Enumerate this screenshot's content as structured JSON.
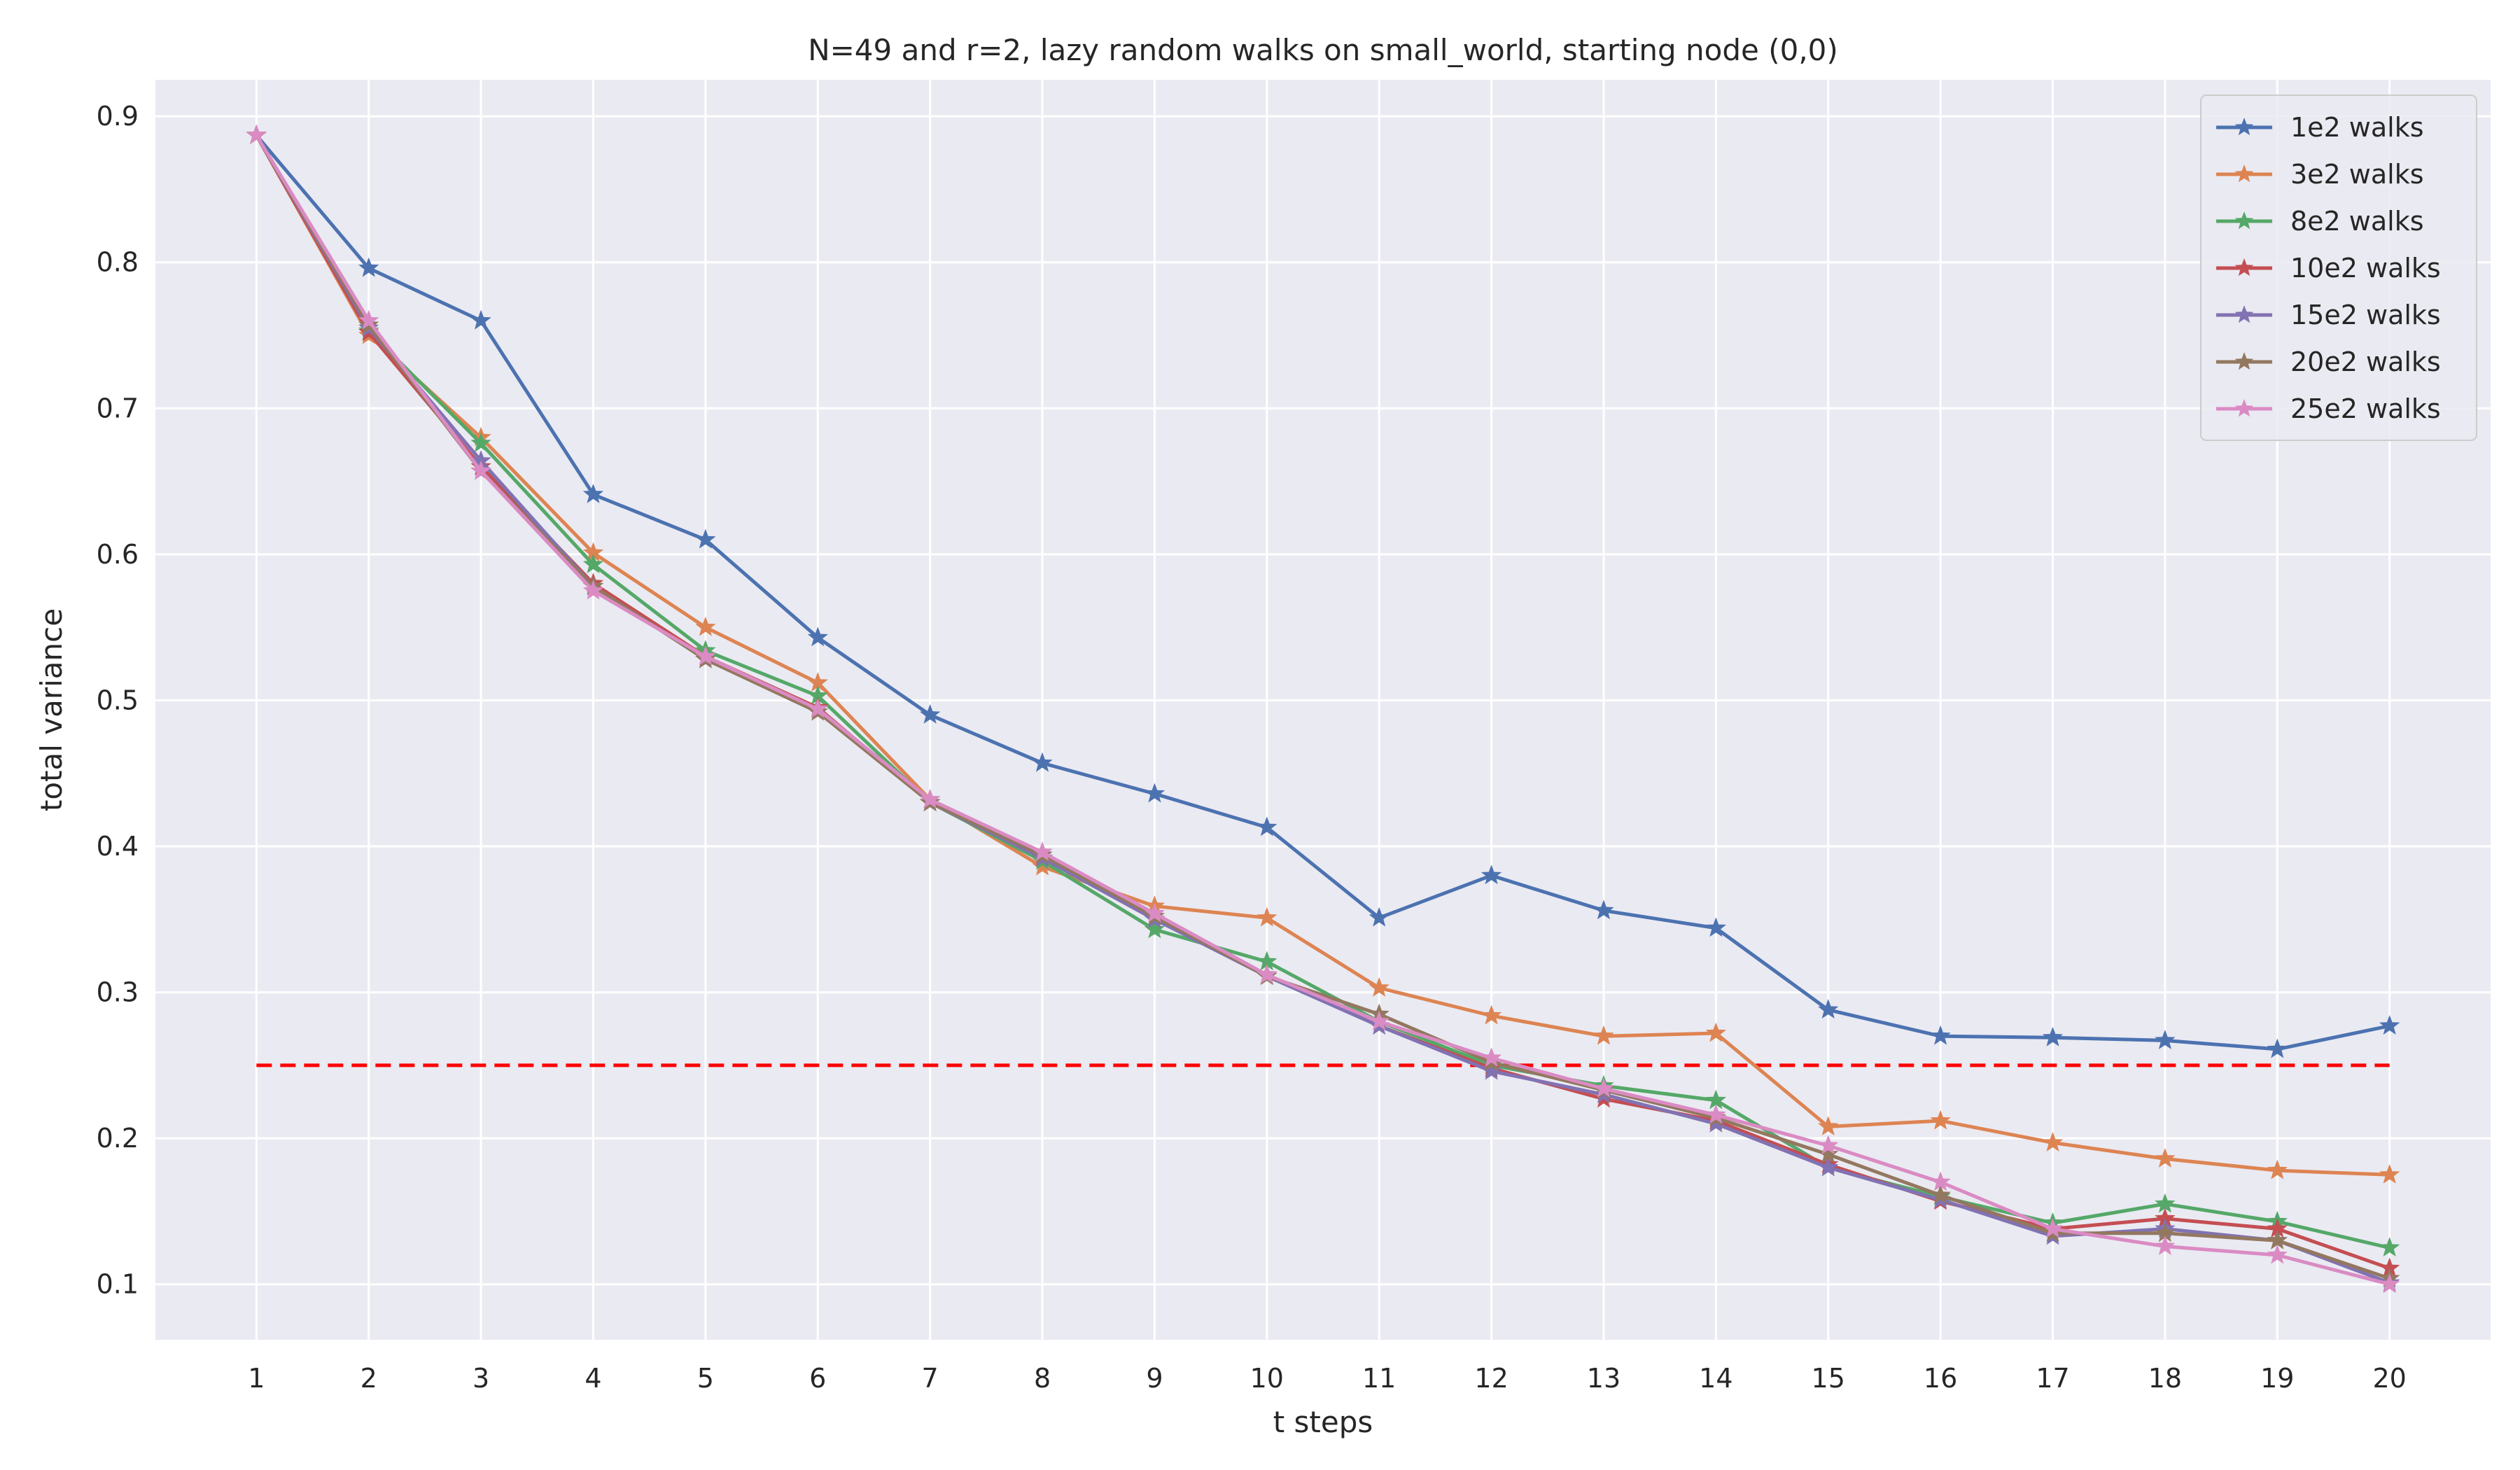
{
  "chart_data": {
    "type": "line",
    "title": "N=49 and r=2, lazy random walks on small_world, starting node (0,0)",
    "xlabel": "t steps",
    "ylabel": "total variance",
    "x": [
      1,
      2,
      3,
      4,
      5,
      6,
      7,
      8,
      9,
      10,
      11,
      12,
      13,
      14,
      15,
      16,
      17,
      18,
      19,
      20
    ],
    "xlim": [
      0.1,
      20.9
    ],
    "ylim": [
      0.062,
      0.925
    ],
    "yticks": [
      0.1,
      0.2,
      0.3,
      0.4,
      0.5,
      0.6,
      0.7,
      0.8,
      0.9
    ],
    "xticks": [
      1,
      2,
      3,
      4,
      5,
      6,
      7,
      8,
      9,
      10,
      11,
      12,
      13,
      14,
      15,
      16,
      17,
      18,
      19,
      20
    ],
    "grid": true,
    "background": "#eaeaf2",
    "legend_position": "top-right",
    "marker": "star",
    "series": [
      {
        "name": "1e2 walks",
        "color": "#4c72b0",
        "values": [
          0.887,
          0.796,
          0.76,
          0.641,
          0.61,
          0.543,
          0.49,
          0.457,
          0.436,
          0.413,
          0.351,
          0.38,
          0.356,
          0.344,
          0.288,
          0.27,
          0.269,
          0.267,
          0.261,
          0.277
        ]
      },
      {
        "name": "3e2 walks",
        "color": "#dd8452",
        "values": [
          0.887,
          0.75,
          0.68,
          0.601,
          0.55,
          0.512,
          0.432,
          0.386,
          0.359,
          0.351,
          0.303,
          0.284,
          0.27,
          0.272,
          0.208,
          0.212,
          0.197,
          0.186,
          0.178,
          0.175
        ]
      },
      {
        "name": "8e2 walks",
        "color": "#55a868",
        "values": [
          0.887,
          0.753,
          0.676,
          0.593,
          0.534,
          0.503,
          0.43,
          0.39,
          0.343,
          0.321,
          0.28,
          0.25,
          0.236,
          0.226,
          0.18,
          0.16,
          0.142,
          0.155,
          0.143,
          0.125
        ]
      },
      {
        "name": "10e2 walks",
        "color": "#c44e52",
        "values": [
          0.887,
          0.752,
          0.66,
          0.58,
          0.53,
          0.495,
          0.43,
          0.392,
          0.35,
          0.312,
          0.277,
          0.248,
          0.227,
          0.212,
          0.182,
          0.157,
          0.138,
          0.145,
          0.138,
          0.111
        ]
      },
      {
        "name": "15e2 walks",
        "color": "#8172b3",
        "values": [
          0.887,
          0.755,
          0.664,
          0.578,
          0.528,
          0.494,
          0.43,
          0.392,
          0.35,
          0.311,
          0.277,
          0.246,
          0.23,
          0.21,
          0.18,
          0.158,
          0.133,
          0.138,
          0.13,
          0.101
        ]
      },
      {
        "name": "20e2 walks",
        "color": "#937860",
        "values": [
          0.887,
          0.757,
          0.657,
          0.578,
          0.528,
          0.492,
          0.43,
          0.394,
          0.352,
          0.311,
          0.285,
          0.252,
          0.233,
          0.214,
          0.189,
          0.161,
          0.135,
          0.135,
          0.13,
          0.104
        ]
      },
      {
        "name": "25e2 walks",
        "color": "#da8bc3",
        "values": [
          0.887,
          0.76,
          0.657,
          0.575,
          0.53,
          0.494,
          0.432,
          0.396,
          0.354,
          0.312,
          0.28,
          0.255,
          0.234,
          0.216,
          0.195,
          0.17,
          0.138,
          0.126,
          0.12,
          0.1
        ]
      }
    ],
    "reference_line": {
      "y": 0.25,
      "x_from": 1,
      "x_to": 20,
      "color": "#ff0000",
      "style": "dashed"
    }
  }
}
